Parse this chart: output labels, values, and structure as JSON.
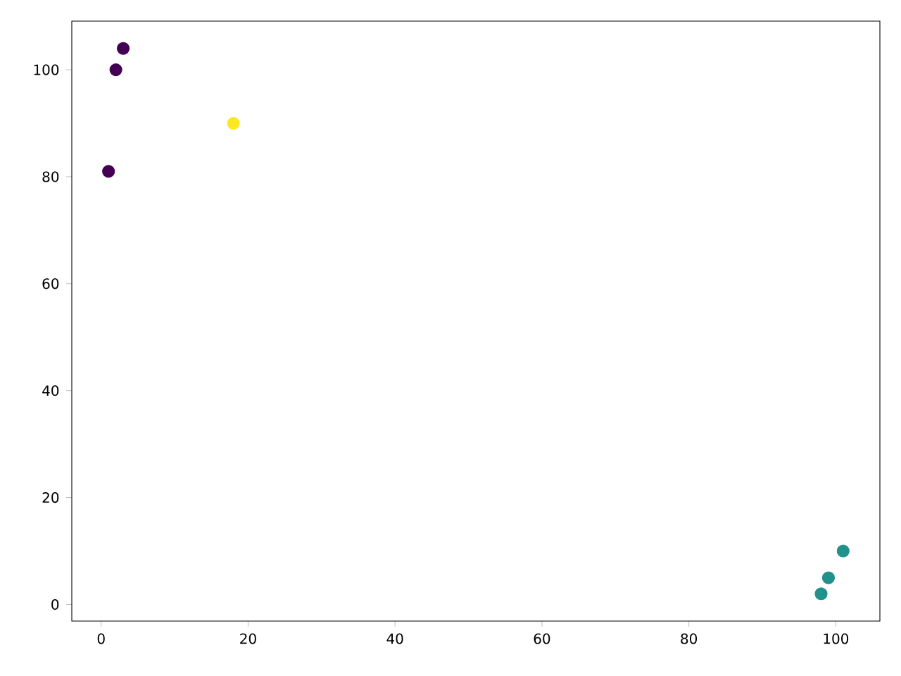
{
  "chart_data": {
    "type": "scatter",
    "x": [
      1,
      2,
      3,
      18,
      98,
      99,
      101
    ],
    "values": [
      81,
      100,
      104,
      90,
      2,
      5,
      10
    ],
    "colors": [
      "#440154",
      "#440154",
      "#440154",
      "#fde725",
      "#21918c",
      "#21918c",
      "#21918c"
    ],
    "xlim": [
      -4,
      106
    ],
    "ylim": [
      -3.1,
      109.1
    ],
    "xticks": [
      0,
      20,
      40,
      60,
      80,
      100
    ],
    "yticks": [
      0,
      20,
      40,
      60,
      80,
      100
    ]
  }
}
